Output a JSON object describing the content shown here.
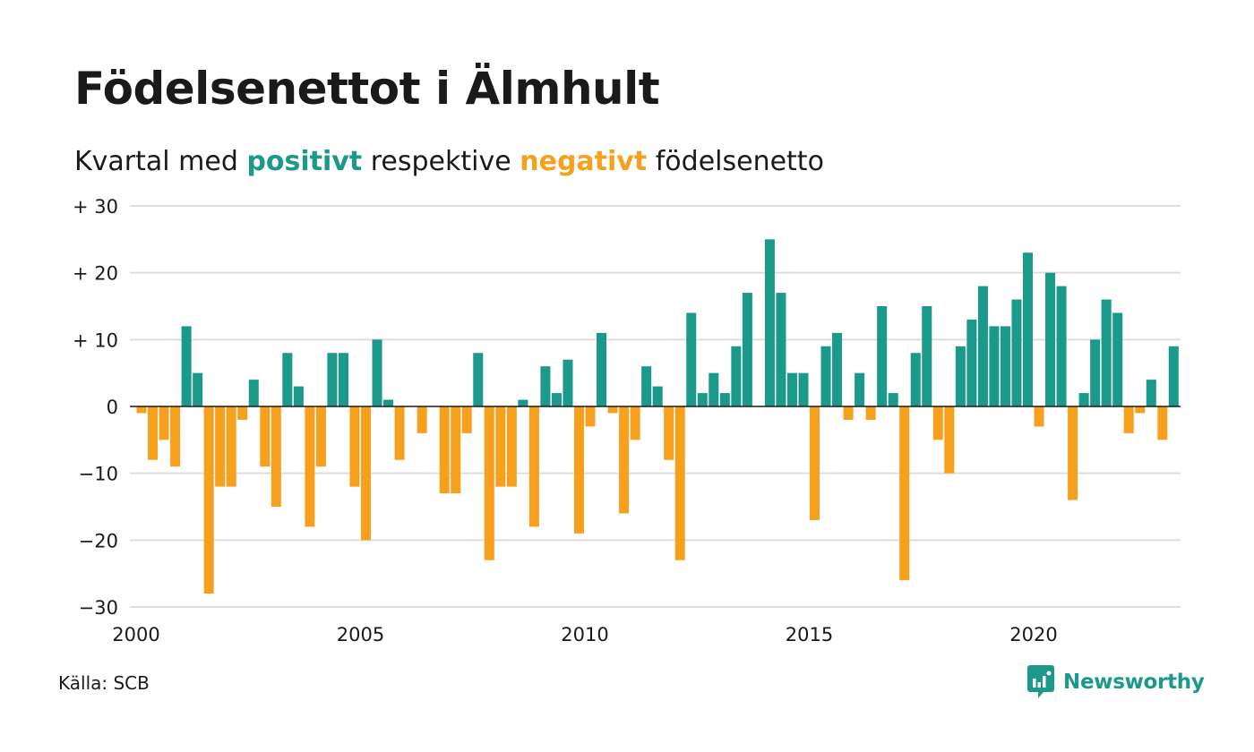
{
  "title": "Födelsenettot i Älmhult",
  "subtitle": {
    "prefix": "Kvartal med",
    "positive_word": "positivt",
    "middle": "respektive",
    "negative_word": "negativt",
    "suffix": "födelsenetto"
  },
  "source": "Källa: SCB",
  "logo": {
    "text": "Newsworthy",
    "icon": "newsworthy-logo-icon"
  },
  "colors": {
    "positive": "#1b998b",
    "negative": "#f7a01d",
    "grid": "#dedede",
    "text": "#1a1a1a",
    "logo": "#1b998b"
  },
  "chart_data": {
    "type": "bar",
    "title": "Födelsenettot i Älmhult",
    "x_unit": "quarter",
    "x_start": "2000 Q1",
    "x_ticks": [
      2000,
      2005,
      2010,
      2015,
      2020
    ],
    "y_ticks": [
      {
        "value": 30,
        "label": "+ 30"
      },
      {
        "value": 20,
        "label": "+ 20"
      },
      {
        "value": 10,
        "label": "+ 10"
      },
      {
        "value": 0,
        "label": "0"
      },
      {
        "value": -10,
        "label": "−10"
      },
      {
        "value": -20,
        "label": "−20"
      },
      {
        "value": -30,
        "label": "−30"
      }
    ],
    "ylim": [
      -30,
      30
    ],
    "grid": true,
    "values": [
      -1,
      -8,
      -5,
      -9,
      12,
      5,
      -28,
      -12,
      -12,
      -2,
      4,
      -9,
      -15,
      8,
      3,
      -18,
      -9,
      8,
      8,
      -12,
      -20,
      10,
      1,
      -8,
      0,
      -4,
      0,
      -13,
      -13,
      -4,
      8,
      -23,
      -12,
      -12,
      1,
      -18,
      6,
      2,
      7,
      -19,
      -3,
      11,
      -1,
      -16,
      -5,
      6,
      3,
      -8,
      -23,
      14,
      2,
      5,
      2,
      9,
      17,
      0,
      25,
      17,
      5,
      5,
      -17,
      9,
      11,
      -2,
      5,
      -2,
      15,
      2,
      -26,
      8,
      15,
      -5,
      -10,
      9,
      13,
      18,
      12,
      12,
      16,
      23,
      -3,
      20,
      18,
      -14,
      2,
      10,
      16,
      14,
      -4,
      -1,
      4,
      -5,
      9
    ]
  }
}
